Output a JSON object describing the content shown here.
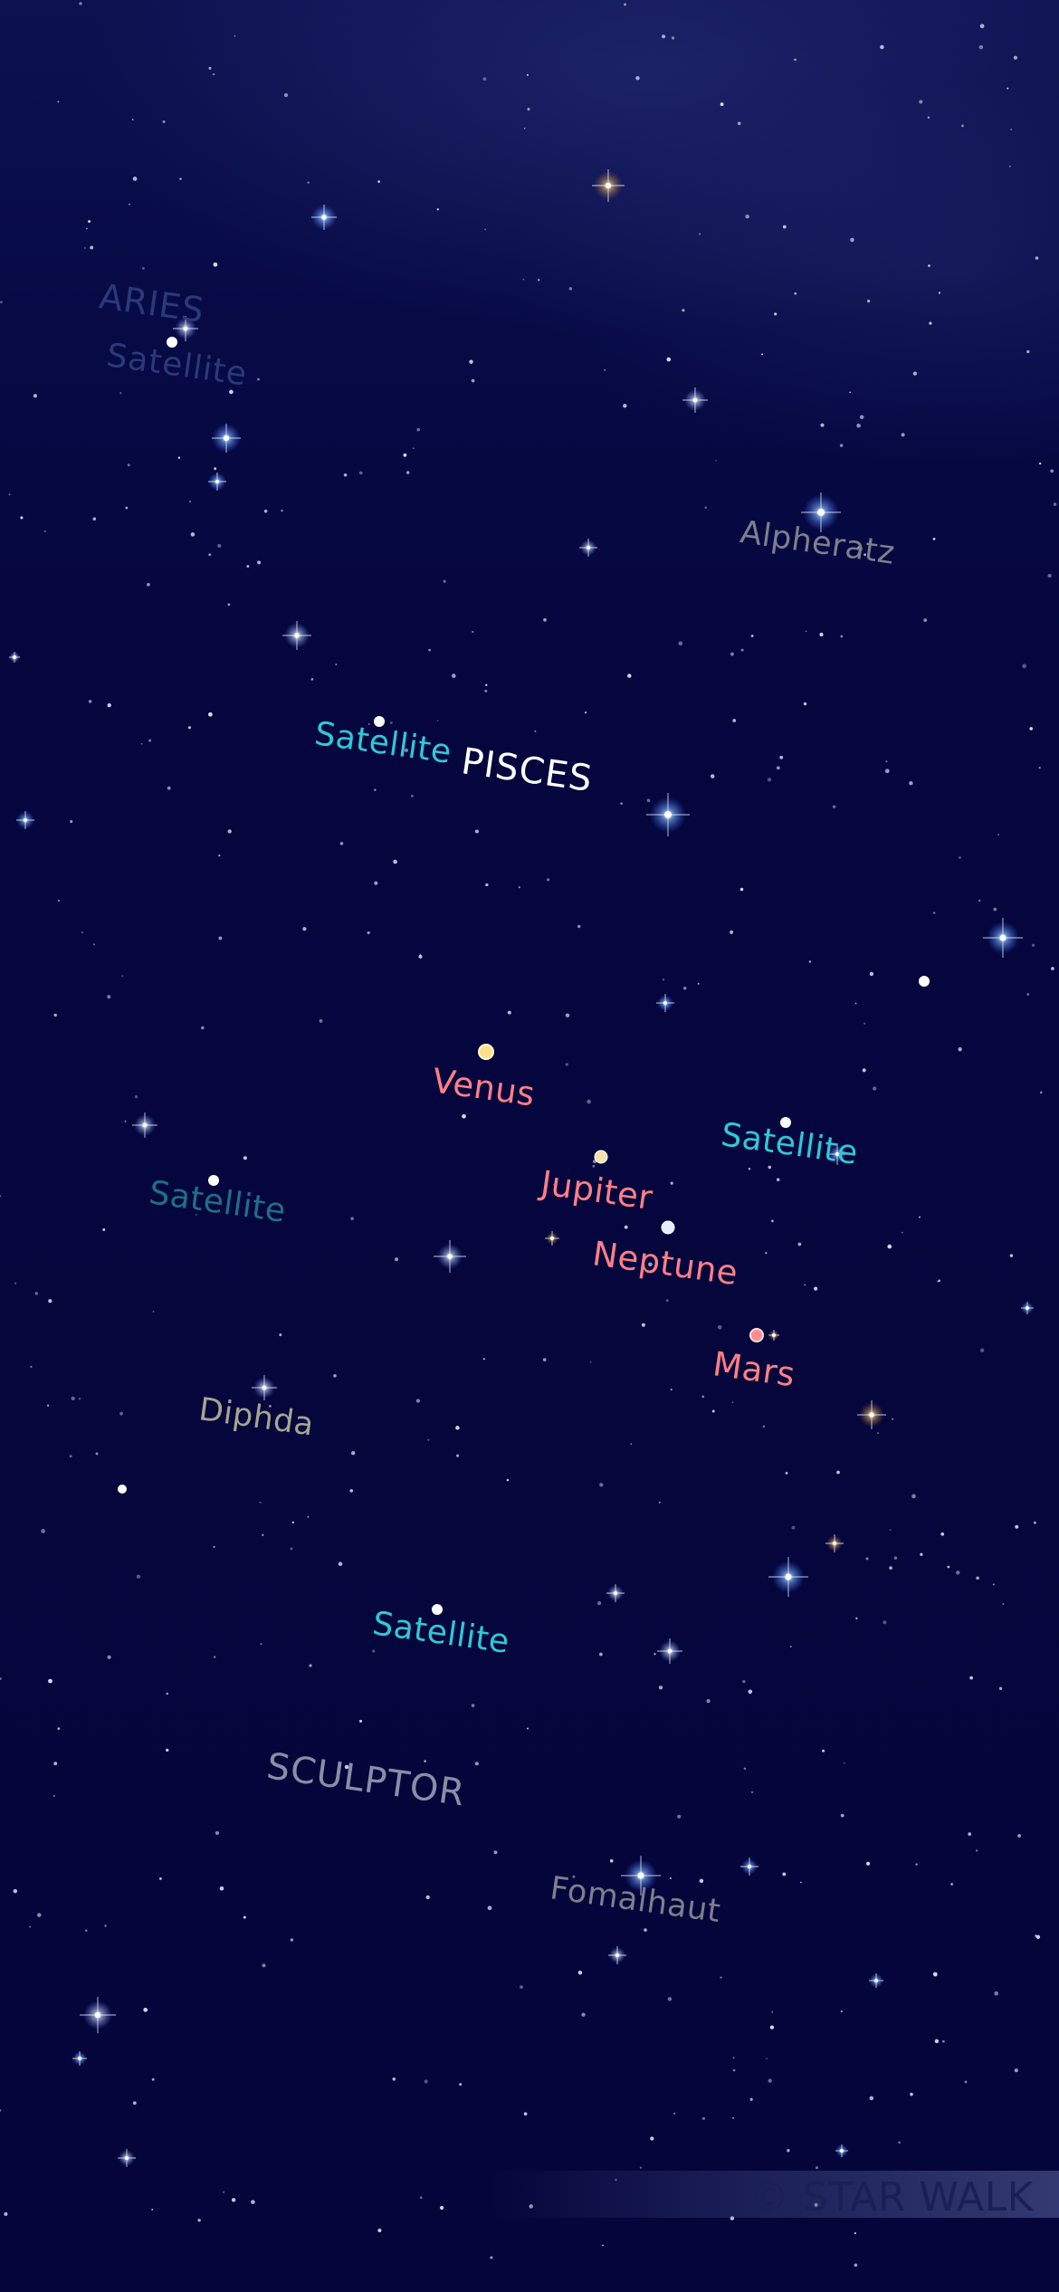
{
  "constellations": {
    "aries": "ARIES",
    "pisces": "PISCES",
    "sculptor": "SCULPTOR"
  },
  "stars": {
    "alpheratz": "Alpheratz",
    "diphda": "Diphda",
    "fomalhaut": "Fomalhaut"
  },
  "planets": {
    "venus": "Venus",
    "jupiter": "Jupiter",
    "neptune": "Neptune",
    "mars": "Mars"
  },
  "satellites": {
    "label": "Satellite"
  },
  "watermark": "© STAR WALK",
  "colors": {
    "sky": "#05063a",
    "satellite": "#2ec9d6",
    "planet": "#ff7f86",
    "venus_dot": "#ffe08a",
    "mars_dot": "#ff8d8d",
    "neptune_dot": "#e6f0ff"
  }
}
